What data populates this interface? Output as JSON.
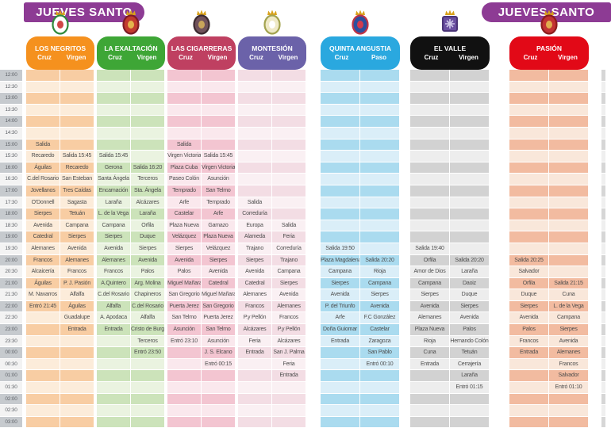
{
  "title": "JUEVES SANTO",
  "banner_color": "#8d3b94",
  "time_column_colors": {
    "hour_bg": "#c6cace",
    "half_bg": "#f3f3f3"
  },
  "cutoff_strip_colors": [
    "#d6d6d6",
    "#efefef"
  ],
  "chart_data": {
    "type": "table",
    "title": "JUEVES SANTO",
    "time_axis": {
      "start": "12:00",
      "end": "03:00",
      "interval_minutes": 30
    },
    "times": [
      "12:00",
      "12:30",
      "13:00",
      "13:30",
      "14:00",
      "14:30",
      "15:00",
      "15:30",
      "16:00",
      "16:30",
      "17:00",
      "17:30",
      "18:00",
      "18:30",
      "19:00",
      "19:30",
      "20:00",
      "20:30",
      "21:00",
      "21:30",
      "22:00",
      "22:30",
      "23:00",
      "23:30",
      "00:00",
      "00:30",
      "01:00",
      "01:30",
      "02:00",
      "02:30",
      "03:00"
    ],
    "groups": [
      {
        "id": "los-negritos",
        "name": "LOS NEGRITOS",
        "columns": [
          "Cruz",
          "Virgen"
        ],
        "header_color": "#f5911e",
        "text_color": "#ffffff",
        "row_colors": [
          "#f8cda3",
          "#fcecda"
        ],
        "crest_colors": {
          "crown": "#d9a21b",
          "ring": "#2f8a3c",
          "fill": "#ffffff",
          "inner": "#cf4646",
          "shape": "ellipse"
        },
        "schedules": [
          [
            "",
            "",
            "",
            "",
            "",
            "",
            "Salida",
            "Recaredo",
            "Águilas",
            "C.del Rosario",
            "Jovellanos",
            "O'Donnell",
            "Sierpes",
            "Avenida",
            "Catedral",
            "Alemanes",
            "Francos",
            "Alcaicería",
            "Águilas",
            "M. Navarros",
            "Entró 21:45",
            "",
            "",
            "",
            "",
            "",
            "",
            "",
            "",
            "",
            ""
          ],
          [
            "",
            "",
            "",
            "",
            "",
            "",
            "",
            "Salida 15:45",
            "Recaredo",
            "San Esteban",
            "Tres Caídas",
            "Sagasta",
            "Tetuán",
            "Campana",
            "Sierpes",
            "Avenida",
            "Alemanes",
            "Francos",
            "P. J. Pasión",
            "Alfalfa",
            "Águilas",
            "Guadalupe",
            "Entrada",
            "",
            "",
            "",
            "",
            "",
            "",
            "",
            ""
          ]
        ]
      },
      {
        "id": "la-exaltacion",
        "name": "LA EXALTACIÓN",
        "columns": [
          "Cruz",
          "Virgen"
        ],
        "header_color": "#3ea636",
        "text_color": "#ffffff",
        "row_colors": [
          "#cce3ba",
          "#eaf3e0"
        ],
        "crest_colors": {
          "crown": "#d9a21b",
          "ring": "#7e1c26",
          "fill": "#c23a2e",
          "inner": "#e3b34c",
          "shape": "ellipse"
        },
        "schedules": [
          [
            "",
            "",
            "",
            "",
            "",
            "",
            "",
            "Salida 15:45",
            "Gerona",
            "Santa Ángela",
            "Encarnación",
            "Laraña",
            "L. de la Vega",
            "Campana",
            "Sierpes",
            "Avenida",
            "Alemanes",
            "Francos",
            "A.Quintero",
            "C.del Rosario",
            "Alfalfa",
            "A. Apodaca",
            "Entrada",
            "",
            "",
            "",
            "",
            "",
            "",
            "",
            ""
          ],
          [
            "",
            "",
            "",
            "",
            "",
            "",
            "",
            "",
            "Salida 16:20",
            "Terceros",
            "Sta. Ángela",
            "Alcázares",
            "Laraña",
            "Orfila",
            "Duque",
            "Sierpes",
            "Avenida",
            "Palos",
            "Arg. Molina",
            "Chapineros",
            "C.del Rosario",
            "Alfalfa",
            "Cristo de Burgos",
            "Terceros",
            "Entró 23:50",
            "",
            "",
            "",
            "",
            "",
            ""
          ]
        ]
      },
      {
        "id": "las-cigarreras",
        "name": "LAS CIGARRERAS",
        "columns": [
          "Cruz",
          "Virgen"
        ],
        "header_color": "#bf4061",
        "text_color": "#ffffff",
        "row_colors": [
          "#f3c5d1",
          "#fae8ed"
        ],
        "crest_colors": {
          "crown": "#d9a21b",
          "ring": "#3c2b30",
          "fill": "#70525b",
          "inner": "#c9a55a",
          "shape": "ellipse"
        },
        "schedules": [
          [
            "",
            "",
            "",
            "",
            "",
            "",
            "Salida",
            "Virgen Victoria",
            "Plaza Cuba",
            "Paseo Colón",
            "Temprado",
            "Arfe",
            "Castelar",
            "Plaza Nueva",
            "Velázquez",
            "Sierpes",
            "Avenida",
            "Palos",
            "Miguel Mañara",
            "San Gregorio",
            "Puerta Jerez",
            "San Telmo",
            "Asunción",
            "Entró 23:10",
            "",
            "",
            "",
            "",
            "",
            "",
            ""
          ],
          [
            "",
            "",
            "",
            "",
            "",
            "",
            "",
            "Salida 15:45",
            "Virgen Victoria",
            "Asunción",
            "San Telmo",
            "Temprado",
            "Arfe",
            "Gamazo",
            "Plaza Nueva",
            "Velázquez",
            "Sierpes",
            "Avenida",
            "Catedral",
            "Miguel Mañara",
            "San Gregorio",
            "Puerta Jerez",
            "San Telmo",
            "Asunción",
            "J. S. Elcano",
            "Entró 00:15",
            "",
            "",
            "",
            "",
            ""
          ]
        ]
      },
      {
        "id": "montesion",
        "name": "MONTESIÓN",
        "columns": [
          "Cruz",
          "Virgen"
        ],
        "header_color": "#6b62a9",
        "text_color": "#ffffff",
        "row_colors": [
          "#f3dde4",
          "#faf0f3"
        ],
        "crest_colors": {
          "crown": "#d9a21b",
          "ring": "#a3a34f",
          "fill": "#efe9c6",
          "inner": "#ffffff",
          "shape": "ellipse"
        },
        "schedules": [
          [
            "",
            "",
            "",
            "",
            "",
            "",
            "",
            "",
            "",
            "",
            "",
            "Salida",
            "Correduría",
            "Europa",
            "Alameda",
            "Trajano",
            "Sierpes",
            "Avenida",
            "Catedral",
            "Alemanes",
            "Francos",
            "P.y Pellón",
            "Alcázares",
            "Feria",
            "Entrada",
            "",
            "",
            "",
            "",
            "",
            ""
          ],
          [
            "",
            "",
            "",
            "",
            "",
            "",
            "",
            "",
            "",
            "",
            "",
            "",
            "",
            "Salida",
            "Feria",
            "Correduría",
            "Trajano",
            "Campana",
            "Sierpes",
            "Avenida",
            "Alemanes",
            "Francos",
            "P.y Pellón",
            "Alcázares",
            "San J. Palma",
            "Feria",
            "Entrada",
            "",
            "",
            "",
            ""
          ]
        ]
      },
      {
        "id": "quinta-angustia",
        "name": "QUINTA ANGUSTIA",
        "columns": [
          "Cruz",
          "Paso"
        ],
        "header_color": "#2aa8df",
        "text_color": "#ffffff",
        "row_colors": [
          "#aadbef",
          "#daeef8"
        ],
        "crest_colors": {
          "crown": "#d9a21b",
          "ring": "#c03345",
          "fill": "#2c4f9e",
          "inner": "#d23b4e",
          "shape": "ellipse"
        },
        "schedules": [
          [
            "",
            "",
            "",
            "",
            "",
            "",
            "",
            "",
            "",
            "",
            "",
            "",
            "",
            "",
            "",
            "Salida 19:50",
            "Plaza Magdalena",
            "Campana",
            "Sierpes",
            "Avenida",
            "P. del Triunfo",
            "Arfe",
            "Doña Guiomar",
            "Entrada",
            "",
            "",
            "",
            "",
            "",
            "",
            ""
          ],
          [
            "",
            "",
            "",
            "",
            "",
            "",
            "",
            "",
            "",
            "",
            "",
            "",
            "",
            "",
            "",
            "",
            "Salida 20:20",
            "Rioja",
            "Campana",
            "Sierpes",
            "Avenida",
            "F.C González",
            "Castelar",
            "Zaragoza",
            "San Pablo",
            "Entró 00:10",
            "",
            "",
            "",
            "",
            ""
          ]
        ]
      },
      {
        "id": "el-valle",
        "name": "EL VALLE",
        "columns": [
          "Cruz",
          "Virgen"
        ],
        "header_color": "#111111",
        "text_color": "#ffffff",
        "row_colors": [
          "#d2d2d2",
          "#ededed"
        ],
        "crest_colors": {
          "crown": "#d9a21b",
          "ring": "#4b3577",
          "fill": "#6a4fa0",
          "inner": "#cfc8e8",
          "shape": "square"
        },
        "schedules": [
          [
            "",
            "",
            "",
            "",
            "",
            "",
            "",
            "",
            "",
            "",
            "",
            "",
            "",
            "",
            "",
            "Salida 19:40",
            "Orfila",
            "Amor de Dios",
            "Campana",
            "Sierpes",
            "Avenida",
            "Alemanes",
            "Plaza Nueva",
            "Rioja",
            "Cuna",
            "Entrada",
            "",
            "",
            "",
            "",
            ""
          ],
          [
            "",
            "",
            "",
            "",
            "",
            "",
            "",
            "",
            "",
            "",
            "",
            "",
            "",
            "",
            "",
            "",
            "Salida 20:20",
            "Laraña",
            "Daoiz",
            "Duque",
            "Sierpes",
            "Avenida",
            "Palos",
            "Hernando Colón",
            "Tetuán",
            "Cerrajería",
            "Laraña",
            "Entró 01:15",
            "",
            "",
            "",
            ""
          ]
        ]
      },
      {
        "id": "pasion",
        "name": "PASIÓN",
        "columns": [
          "Cruz",
          "Virgen"
        ],
        "header_color": "#e20917",
        "text_color": "#ffffff",
        "row_colors": [
          "#f2bba0",
          "#f9e7da"
        ],
        "crest_colors": {
          "crown": "#d9a21b",
          "ring": "#8c1d1d",
          "fill": "#c23333",
          "inner": "#e0ad4e",
          "shape": "ellipse"
        },
        "schedules": [
          [
            "",
            "",
            "",
            "",
            "",
            "",
            "",
            "",
            "",
            "",
            "",
            "",
            "",
            "",
            "",
            "",
            "Salida 20:25",
            "Salvador",
            "Orfila",
            "Duque",
            "Sierpes",
            "Avenida",
            "Palos",
            "Francos",
            "Entrada",
            "",
            "",
            "",
            "",
            "",
            ""
          ],
          [
            "",
            "",
            "",
            "",
            "",
            "",
            "",
            "",
            "",
            "",
            "",
            "",
            "",
            "",
            "",
            "",
            "",
            "",
            "Salida 21:15",
            "Cuna",
            "L. de la Vega",
            "Campana",
            "Sierpes",
            "Avenida",
            "Alemanes",
            "Francos",
            "Salvador",
            "Entró 01:10",
            "",
            "",
            "",
            ""
          ]
        ]
      }
    ]
  }
}
